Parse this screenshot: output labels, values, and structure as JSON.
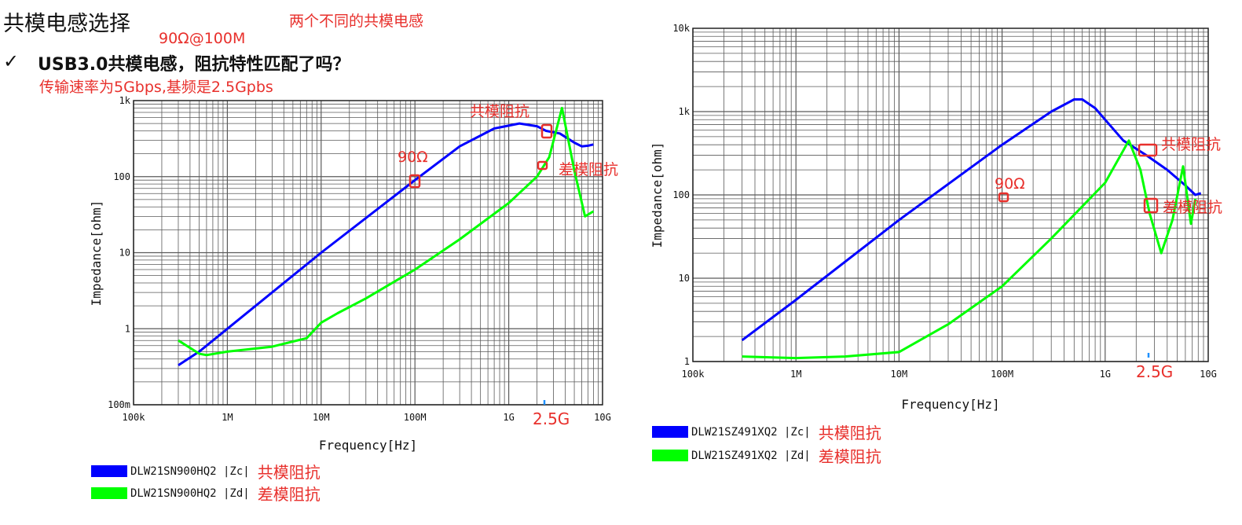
{
  "page": {
    "title": "共模电感选择",
    "note_top": "两个不同的共模电感",
    "note_90": "90Ω@100M",
    "check": "✓",
    "question": "USB3.0共模电感，阻抗特性匹配了吗？",
    "subnote": "传输速率为5Gbps,基频是2.5Gpbs"
  },
  "colors": {
    "zc": "#0000ff",
    "zd": "#00ff00",
    "annotation": "#e8302c",
    "grid": "#5a5a5a"
  },
  "chart_data": [
    {
      "type": "line",
      "xscale": "log",
      "yscale": "log",
      "xlabel": "Frequency[Hz]",
      "ylabel": "Impedance[ohm]",
      "xlim_hz": [
        100000,
        10000000000
      ],
      "ylim_ohm": [
        0.1,
        1000
      ],
      "xtick_labels": [
        "100k",
        "1M",
        "10M",
        "100M",
        "1G",
        "10G"
      ],
      "ytick_labels": [
        "100m",
        "1",
        "10",
        "100",
        "1k"
      ],
      "grid": true,
      "series": [
        {
          "name": "DLW21SN900HQ2 |Zc|",
          "color_key": "zc",
          "x": [
            300000.0,
            500000.0,
            1000000.0,
            10000000.0,
            100000000.0,
            300000000.0,
            700000000.0,
            1300000000.0,
            2000000000.0,
            2500000000.0,
            3500000000.0,
            5000000000.0,
            6000000000.0,
            7000000000.0,
            8000000000.0
          ],
          "y": [
            0.33,
            0.5,
            1,
            10,
            90,
            250,
            430,
            500,
            460,
            400,
            370,
            280,
            250,
            255,
            265
          ]
        },
        {
          "name": "DLW21SN900HQ2 |Zd|",
          "color_key": "zd",
          "x": [
            300000.0,
            500000.0,
            600000.0,
            1000000.0,
            3000000.0,
            7000000.0,
            10000000.0,
            15000000.0,
            30000000.0,
            100000000.0,
            300000000.0,
            1000000000.0,
            2000000000.0,
            2700000000.0,
            3700000000.0,
            5000000000.0,
            6500000000.0,
            8000000000.0
          ],
          "y": [
            0.7,
            0.47,
            0.45,
            0.5,
            0.58,
            0.75,
            1.2,
            1.6,
            2.5,
            6,
            15,
            45,
            100,
            180,
            800,
            120,
            30,
            35
          ]
        }
      ],
      "annotations": {
        "zc_region": "共模阻抗",
        "zd_region": "差模阻抗",
        "ninety": "90Ω",
        "freq_mark": "2.5G"
      },
      "legend": [
        {
          "text": "DLW21SN900HQ2 |Zc|",
          "note": "共模阻抗",
          "color_key": "zc"
        },
        {
          "text": "DLW21SN900HQ2 |Zd|",
          "note": "差模阻抗",
          "color_key": "zd"
        }
      ]
    },
    {
      "type": "line",
      "xscale": "log",
      "yscale": "log",
      "xlabel": "Frequency[Hz]",
      "ylabel": "Impedance[ohm]",
      "xlim_hz": [
        100000,
        10000000000
      ],
      "ylim_ohm": [
        1,
        10000
      ],
      "xtick_labels": [
        "100k",
        "1M",
        "10M",
        "100M",
        "1G",
        "10G"
      ],
      "ytick_labels": [
        "1",
        "10",
        "100",
        "1k",
        "10k"
      ],
      "grid": true,
      "series": [
        {
          "name": "DLW21SZ491XQ2 |Zc|",
          "color_key": "zc",
          "x": [
            300000.0,
            1000000.0,
            10000000.0,
            100000000.0,
            300000000.0,
            500000000.0,
            600000000.0,
            800000000.0,
            1000000000.0,
            1500000000.0,
            2500000000.0,
            4000000000.0,
            6000000000.0,
            7500000000.0,
            8500000000.0
          ],
          "y": [
            1.8,
            5.5,
            50,
            400,
            1000,
            1400,
            1400,
            1100,
            800,
            450,
            300,
            200,
            130,
            100,
            105
          ]
        },
        {
          "name": "DLW21SZ491XQ2 |Zd|",
          "color_key": "zd",
          "x": [
            300000.0,
            1000000.0,
            3000000.0,
            10000000.0,
            30000000.0,
            100000000.0,
            300000000.0,
            1000000000.0,
            1700000000.0,
            2200000000.0,
            2700000000.0,
            3500000000.0,
            4500000000.0,
            5700000000.0,
            6800000000.0,
            7500000000.0
          ],
          "y": [
            1.15,
            1.1,
            1.15,
            1.3,
            2.8,
            8,
            30,
            140,
            450,
            200,
            60,
            20,
            50,
            220,
            45,
            90
          ]
        }
      ],
      "annotations": {
        "zc_region": "共模阻抗",
        "zd_region": "差模阻抗",
        "ninety": "90Ω",
        "freq_mark": "2.5G"
      },
      "legend": [
        {
          "text": "DLW21SZ491XQ2 |Zc|",
          "note": "共模阻抗",
          "color_key": "zc"
        },
        {
          "text": "DLW21SZ491XQ2 |Zd|",
          "note": "差模阻抗",
          "color_key": "zd"
        }
      ]
    }
  ]
}
